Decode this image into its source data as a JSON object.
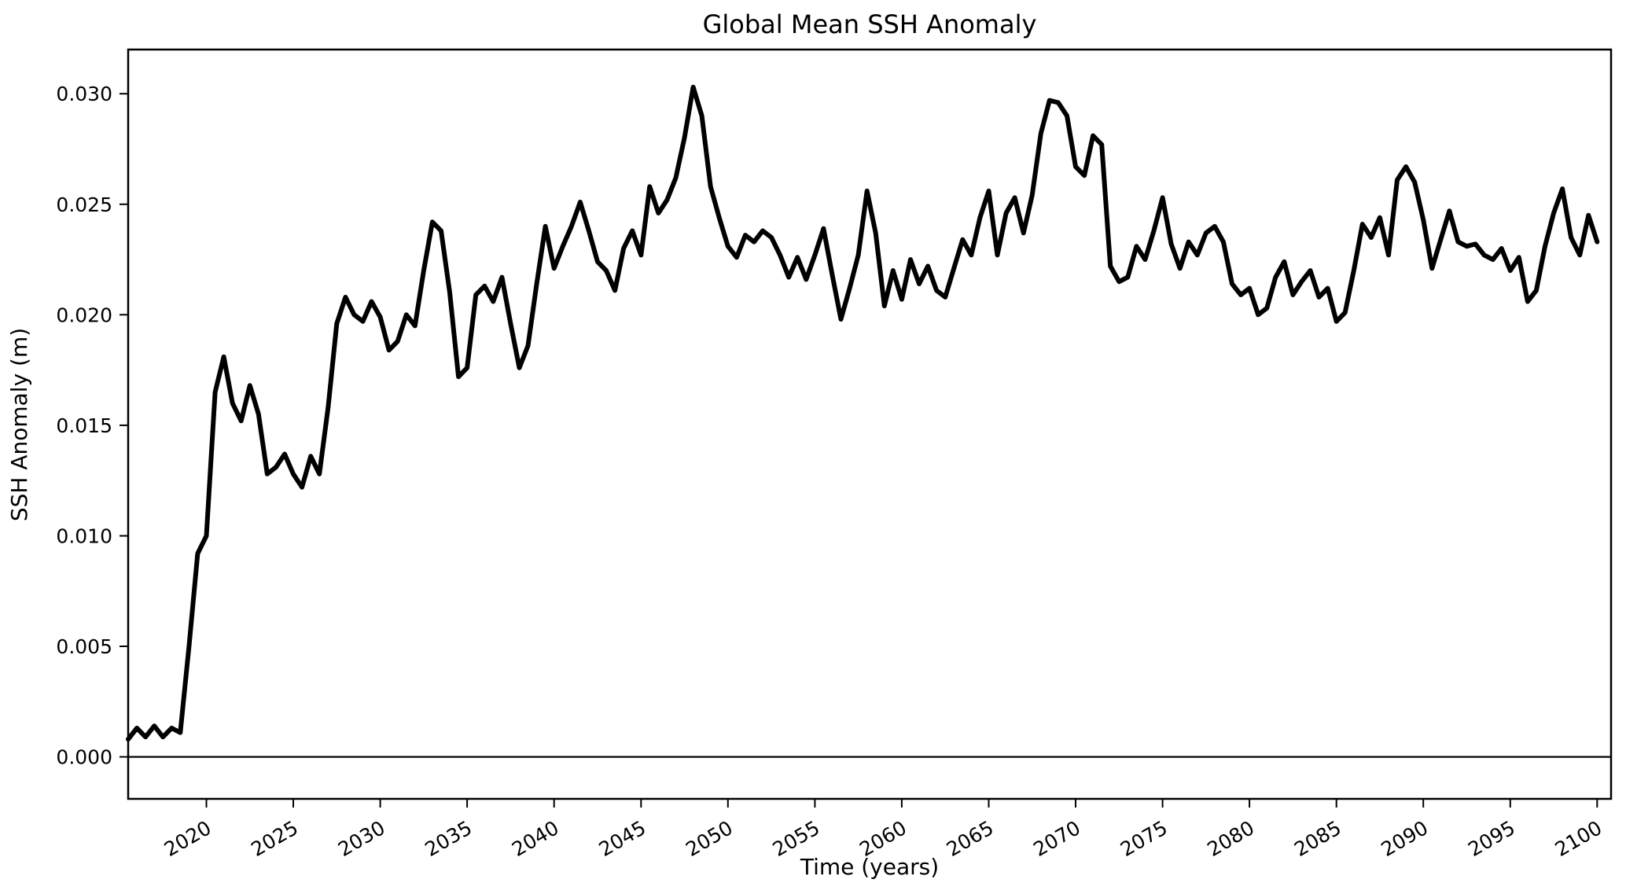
{
  "chart_data": {
    "type": "line",
    "title": "Global Mean SSH Anomaly",
    "xlabel": "Time (years)",
    "ylabel": "SSH Anomaly (m)",
    "xlim": [
      2015.5,
      2100.8
    ],
    "ylim": [
      -0.0019,
      0.032
    ],
    "x_ticks": [
      2020,
      2025,
      2030,
      2035,
      2040,
      2045,
      2050,
      2055,
      2060,
      2065,
      2070,
      2075,
      2080,
      2085,
      2090,
      2095,
      2100
    ],
    "y_ticks": [
      0.0,
      0.005,
      0.01,
      0.015,
      0.02,
      0.025,
      0.03
    ],
    "y_tick_decimals": 3,
    "x_tick_rotation_deg": -30,
    "grid": false,
    "legend_position": "none",
    "hline_y": 0.0,
    "frame_color": "#000000",
    "background_color": "#ffffff",
    "x_start": 2015.5,
    "x_step_years": 0.5,
    "series": [
      {
        "name": "Global mean SSH anomaly",
        "color": "#000000",
        "linewidth": 6,
        "y": [
          0.0008,
          0.0013,
          0.0009,
          0.0014,
          0.0009,
          0.0013,
          0.0011,
          0.005,
          0.0092,
          0.01,
          0.0165,
          0.0181,
          0.016,
          0.0152,
          0.0168,
          0.0155,
          0.0128,
          0.0131,
          0.0137,
          0.0128,
          0.0122,
          0.0136,
          0.0128,
          0.0158,
          0.0196,
          0.0208,
          0.02,
          0.0197,
          0.0206,
          0.0199,
          0.0184,
          0.0188,
          0.02,
          0.0195,
          0.022,
          0.0242,
          0.0238,
          0.021,
          0.0172,
          0.0176,
          0.0209,
          0.0213,
          0.0206,
          0.0217,
          0.0196,
          0.0176,
          0.0186,
          0.0214,
          0.024,
          0.0221,
          0.0231,
          0.024,
          0.0251,
          0.0238,
          0.0224,
          0.022,
          0.0211,
          0.023,
          0.0238,
          0.0227,
          0.0258,
          0.0246,
          0.0252,
          0.0262,
          0.028,
          0.0303,
          0.029,
          0.0258,
          0.0244,
          0.0231,
          0.0226,
          0.0236,
          0.0233,
          0.0238,
          0.0235,
          0.0227,
          0.0217,
          0.0226,
          0.0216,
          0.0227,
          0.0239,
          0.0218,
          0.0198,
          0.0212,
          0.0227,
          0.0256,
          0.0237,
          0.0204,
          0.022,
          0.0207,
          0.0225,
          0.0214,
          0.0222,
          0.0211,
          0.0208,
          0.0221,
          0.0234,
          0.0227,
          0.0244,
          0.0256,
          0.0227,
          0.0246,
          0.0253,
          0.0237,
          0.0254,
          0.0282,
          0.0297,
          0.0296,
          0.029,
          0.0267,
          0.0263,
          0.0281,
          0.0277,
          0.0222,
          0.0215,
          0.0217,
          0.0231,
          0.0225,
          0.0238,
          0.0253,
          0.0232,
          0.0221,
          0.0233,
          0.0227,
          0.0237,
          0.024,
          0.0233,
          0.0214,
          0.0209,
          0.0212,
          0.02,
          0.0203,
          0.0217,
          0.0224,
          0.0209,
          0.0215,
          0.022,
          0.0208,
          0.0212,
          0.0197,
          0.0201,
          0.022,
          0.0241,
          0.0235,
          0.0244,
          0.0227,
          0.0261,
          0.0267,
          0.026,
          0.0243,
          0.0221,
          0.0234,
          0.0247,
          0.0233,
          0.0231,
          0.0232,
          0.0227,
          0.0225,
          0.023,
          0.022,
          0.0226,
          0.0206,
          0.0211,
          0.0231,
          0.0246,
          0.0257,
          0.0235,
          0.0227,
          0.0245,
          0.0233
        ]
      }
    ]
  }
}
